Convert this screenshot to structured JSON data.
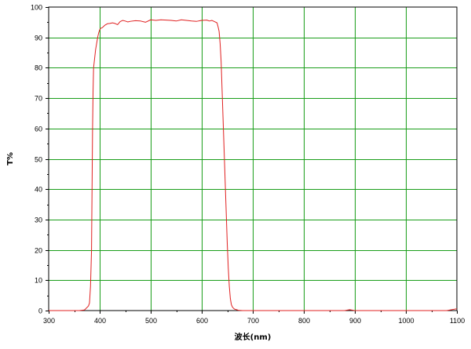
{
  "chart_data": {
    "type": "line",
    "title": "",
    "xlabel": "波长(nm)",
    "ylabel": "T%",
    "xlim": [
      300,
      1100
    ],
    "ylim": [
      0,
      100
    ],
    "xticks": [
      300,
      400,
      500,
      600,
      700,
      800,
      900,
      1000,
      1100
    ],
    "yticks": [
      0,
      10,
      20,
      30,
      40,
      50,
      60,
      70,
      80,
      90,
      100
    ],
    "grid": true,
    "grid_color": "#1a9e1a",
    "series": [
      {
        "color": "#e02020",
        "x": [
          300,
          360,
          370,
          372,
          375,
          378,
          380,
          382,
          384,
          385,
          386,
          387,
          388,
          390,
          392,
          394,
          396,
          398,
          400,
          402,
          405,
          410,
          415,
          420,
          425,
          430,
          435,
          440,
          445,
          450,
          455,
          460,
          470,
          480,
          490,
          500,
          510,
          520,
          530,
          540,
          550,
          560,
          570,
          580,
          590,
          600,
          610,
          615,
          620,
          625,
          630,
          632,
          634,
          636,
          638,
          640,
          642,
          644,
          646,
          648,
          650,
          652,
          654,
          656,
          658,
          660,
          662,
          664,
          668,
          672,
          680,
          700,
          750,
          800,
          850,
          880,
          890,
          900,
          950,
          1000,
          1050,
          1080,
          1090,
          1100
        ],
        "y": [
          0,
          0,
          0.2,
          0.5,
          1,
          1.5,
          2.5,
          8,
          20,
          40,
          60,
          72,
          80,
          83,
          86,
          88,
          90,
          91.5,
          92.5,
          93,
          93.2,
          94,
          94.5,
          94.6,
          94.8,
          94.6,
          94.2,
          95.2,
          95.6,
          95.4,
          95.1,
          95.3,
          95.5,
          95.4,
          95,
          95.8,
          95.6,
          95.8,
          95.7,
          95.6,
          95.4,
          95.8,
          95.6,
          95.4,
          95.3,
          95.6,
          95.7,
          95.4,
          95.6,
          95.2,
          94.8,
          93.5,
          92,
          88,
          82,
          72,
          62,
          52,
          42,
          32,
          22,
          14,
          8,
          4,
          2,
          1.2,
          0.8,
          0.5,
          0.3,
          0.1,
          0,
          0,
          0,
          0,
          0,
          0,
          0.3,
          0,
          0,
          0,
          0,
          0,
          0.3,
          0.6
        ]
      }
    ]
  }
}
